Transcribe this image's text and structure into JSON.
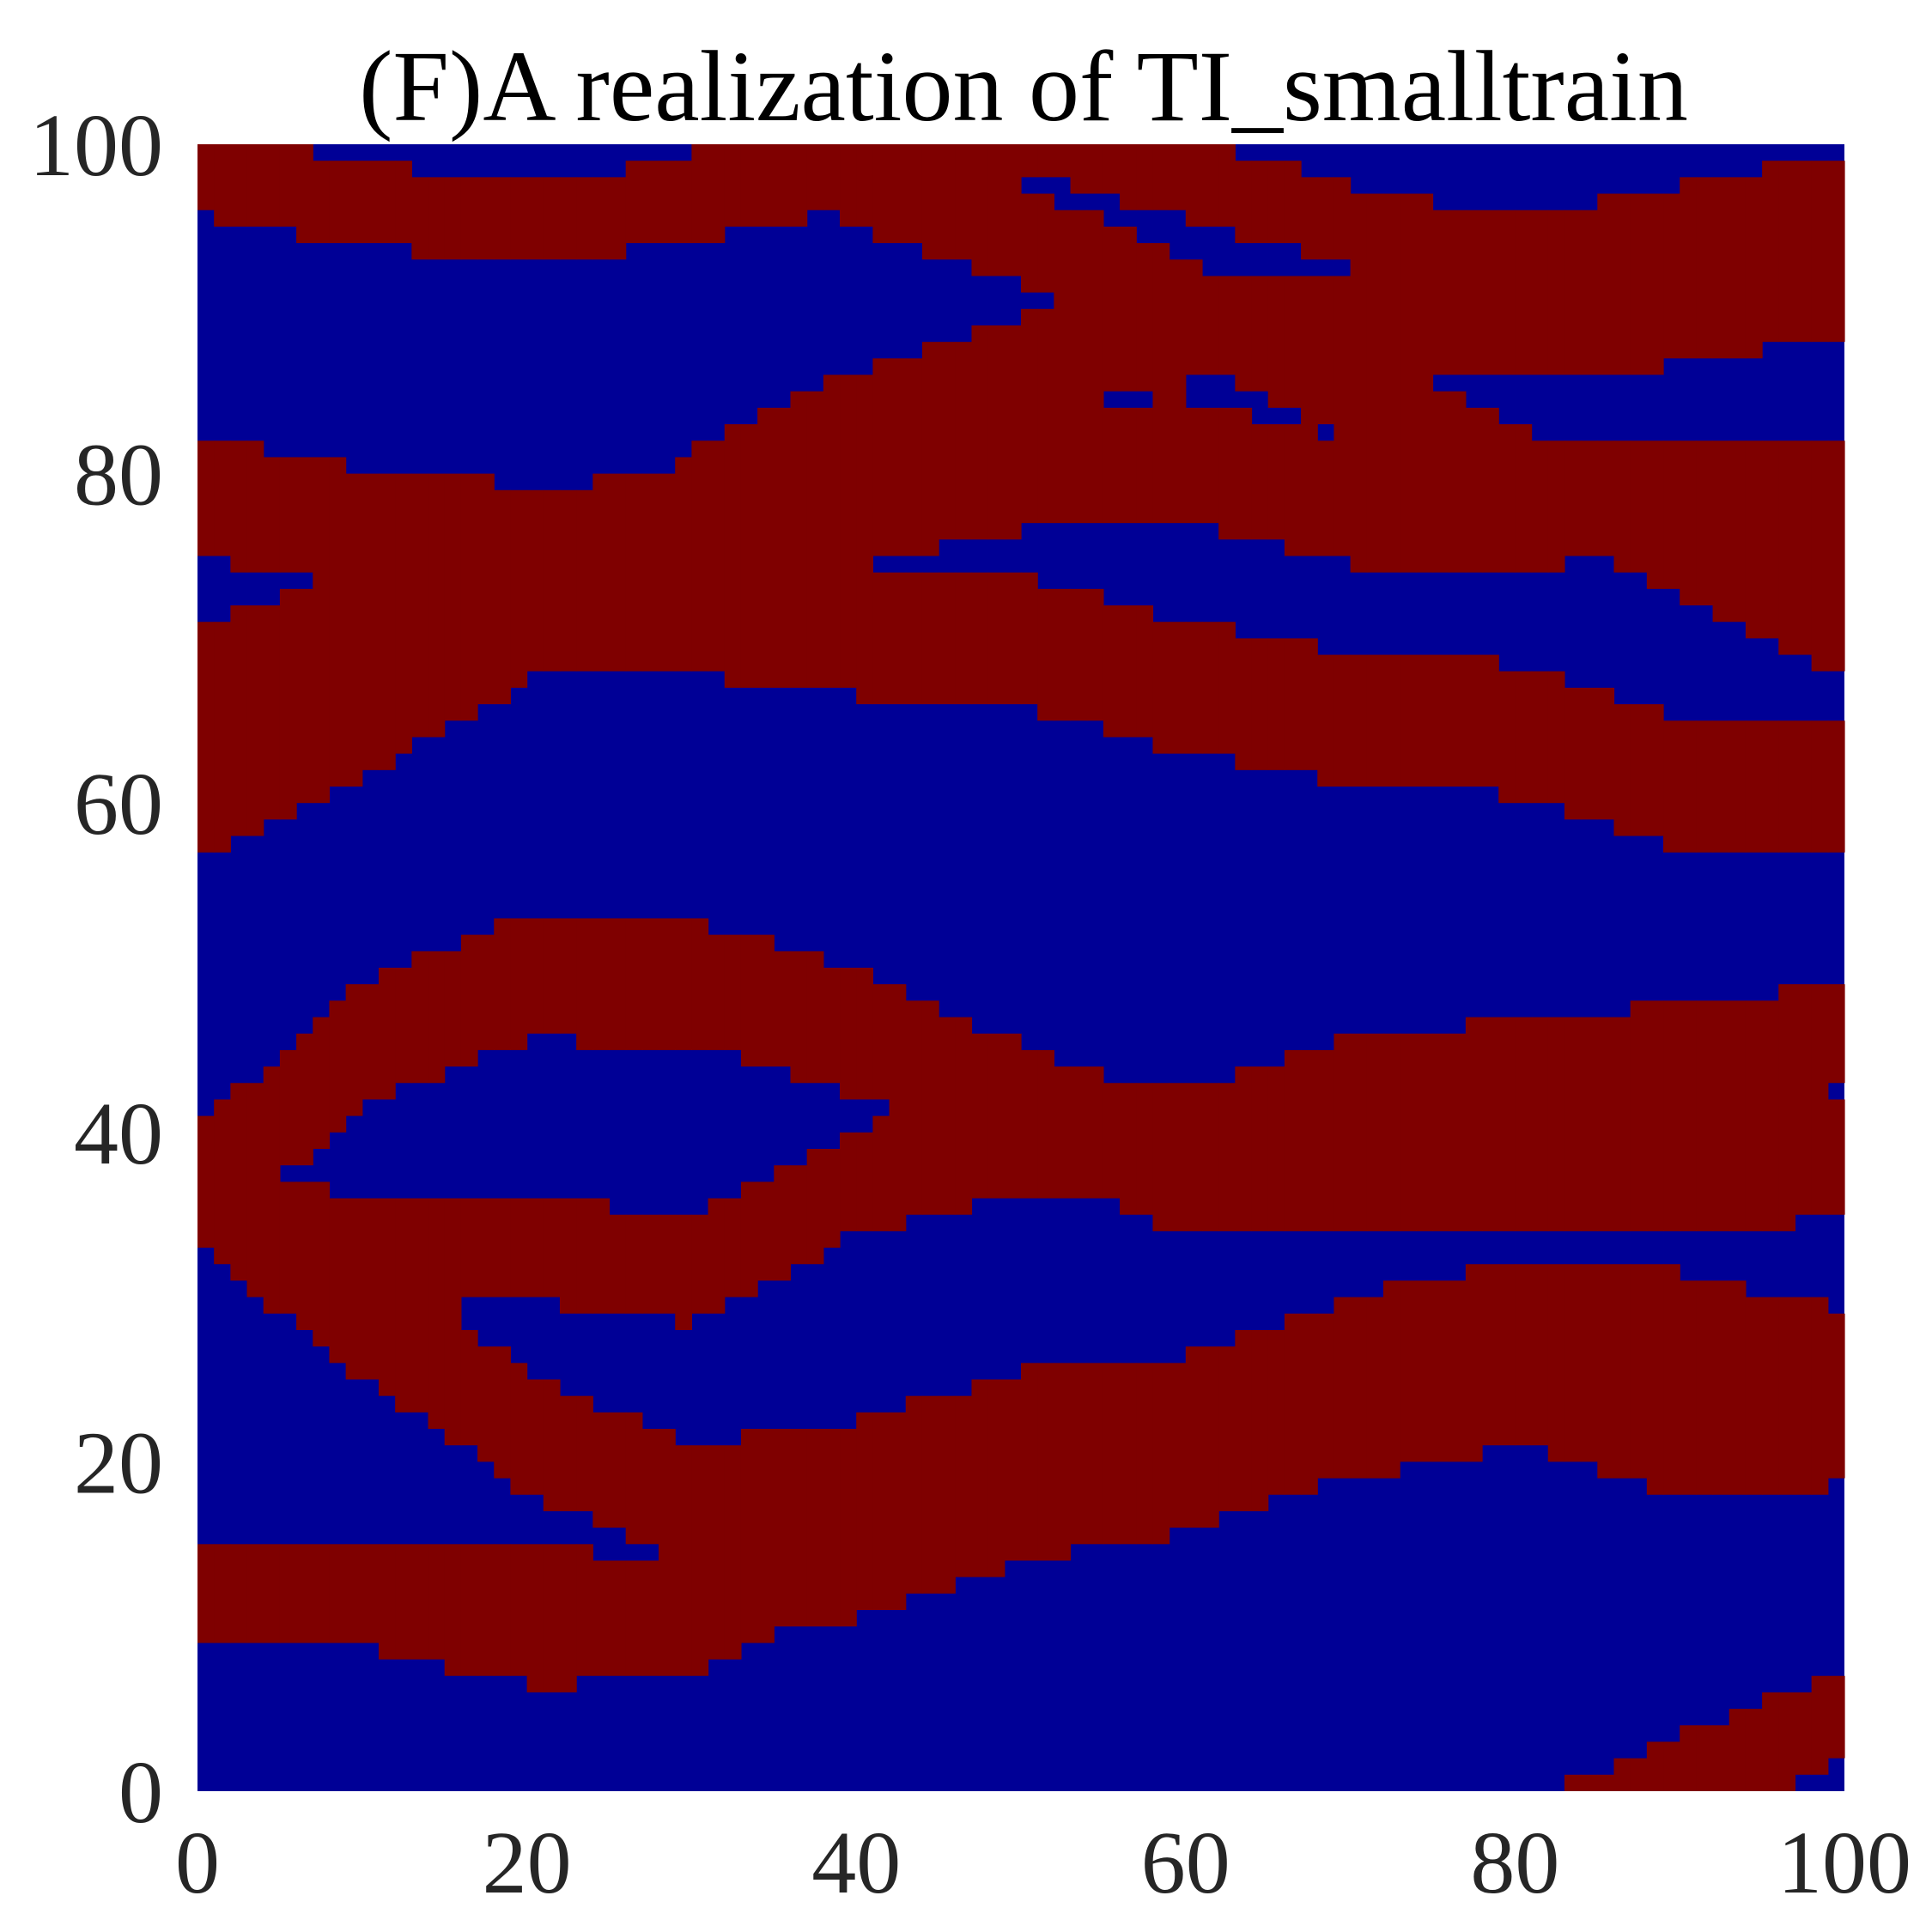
{
  "chart_data": {
    "type": "heatmap",
    "title": "(F)A realization of TI_smalltrain",
    "xlabel": "",
    "ylabel": "",
    "xlim": [
      0,
      100
    ],
    "ylim": [
      0,
      100
    ],
    "x_ticks": [
      "0",
      "20",
      "40",
      "60",
      "80",
      "100"
    ],
    "y_ticks": [
      "0",
      "20",
      "40",
      "60",
      "80",
      "100"
    ],
    "grid": false,
    "legend": "none",
    "categories": [
      "background",
      "channel"
    ],
    "colors": {
      "background": "#000096",
      "channel": "#7f0000"
    },
    "channels": [
      {
        "x": [
          0,
          10,
          20,
          30,
          40,
          50,
          60,
          70,
          80,
          90,
          100
        ],
        "center": [
          98.3,
          96.3,
          95.2,
          96.5,
          98.6,
          100.8,
          98,
          95,
          93,
          95,
          97
        ],
        "half_width": 2.5
      },
      {
        "x": [
          0,
          10,
          20,
          30,
          40,
          50,
          60,
          70,
          80,
          90,
          100
        ],
        "center": [
          109.7,
          106.1,
          104.5,
          102.4,
          98,
          94.5,
          90.2,
          85.1,
          80.2,
          75.3,
          70.8
        ],
        "half_width": 3
      },
      {
        "x": [
          0,
          10,
          20,
          30,
          40,
          50,
          60,
          70,
          80,
          90,
          100
        ],
        "center": [
          59.7,
          64.5,
          70.3,
          78.3,
          83.3,
          86.6,
          88.5,
          89.1,
          88.9,
          89.6,
          91.3
        ],
        "half_width": 3
      },
      {
        "x": [
          0,
          10,
          20,
          30,
          40,
          50,
          60,
          70,
          80,
          90,
          100
        ],
        "center": [
          78.6,
          76.7,
          75.6,
          76.1,
          78,
          80.3,
          80.9,
          78.1,
          77.9,
          78.8,
          77.8
        ],
        "half_width": 3.7
      },
      {
        "x": [
          0,
          10,
          20,
          30,
          40,
          50,
          60,
          70,
          80,
          90,
          100
        ],
        "center": [
          66.8,
          70.3,
          71.7,
          71.7,
          70.5,
          69.7,
          67.1,
          65.2,
          64.4,
          61.1,
          61
        ],
        "half_width": 4
      },
      {
        "x": [
          0,
          10,
          20,
          30,
          40,
          50,
          60,
          70,
          80,
          90,
          100
        ],
        "center": [
          36.5,
          45.4,
          49.4,
          49.1,
          46,
          41.5,
          37.6,
          37.3,
          37.4,
          37.5,
          38.6
        ],
        "half_width": 3.8
      },
      {
        "x": [
          0,
          10,
          20,
          30,
          40,
          50,
          60,
          70,
          80,
          90,
          100
        ],
        "center": [
          36.2,
          32.4,
          32.9,
          31.6,
          37,
          39.5,
          39.3,
          42.5,
          43.7,
          44.5,
          45.8
        ],
        "half_width": 3.2
      },
      {
        "x": [
          0,
          10,
          20,
          30,
          40,
          50,
          60,
          70,
          80,
          90,
          100
        ],
        "center": [
          36.7,
          28.7,
          21.8,
          17.3,
          18.8,
          21.8,
          22.7,
          26.3,
          28.4,
          27.8,
          25.5
        ],
        "half_width": 3.7
      },
      {
        "x": [
          0,
          10,
          20,
          30,
          40,
          50,
          60,
          70,
          80,
          90,
          100
        ],
        "center": [
          11.5,
          11.5,
          9.2,
          9.6,
          15.7,
          16.7,
          18.5,
          21.8,
          23.7,
          21.7,
          23.4
        ],
        "half_width": 2.8
      },
      {
        "x": [
          0,
          10,
          20,
          30,
          40,
          50,
          60,
          70,
          80,
          90,
          100
        ],
        "center": [
          12.5,
          12.5,
          12,
          11.2,
          13.4,
          16.7,
          20.1,
          25.6,
          24,
          20.5,
          21.4
        ],
        "half_width": 2.8
      },
      {
        "x": [
          0,
          10,
          20,
          30,
          40,
          50,
          60,
          70,
          80,
          90,
          100
        ],
        "center": [
          -27.5,
          -25,
          -22.4,
          -19.9,
          -17.3,
          -14.9,
          -11.7,
          -8,
          -3.8,
          0.7,
          4.5
        ],
        "half_width": 2.8
      }
    ],
    "patches": [
      {
        "x0": 0,
        "x1": 7,
        "y0": 61,
        "y1": 69
      }
    ]
  }
}
